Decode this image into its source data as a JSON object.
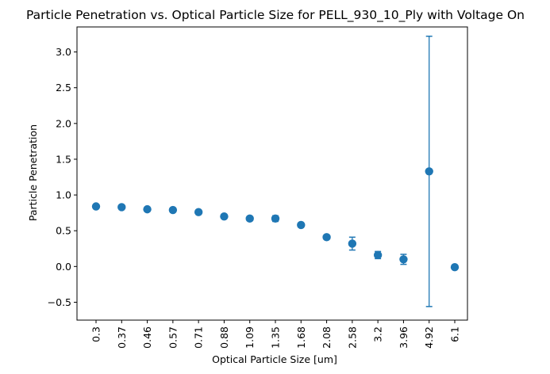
{
  "chart_data": {
    "type": "scatter",
    "title": "Particle Penetration vs. Optical Particle Size for PELL_930_10_Ply with Voltage On",
    "xlabel": "Optical Particle Size [um]",
    "ylabel": "Particle Penetration",
    "categories": [
      "0.3",
      "0.37",
      "0.46",
      "0.57",
      "0.71",
      "0.88",
      "1.09",
      "1.35",
      "1.68",
      "2.08",
      "2.58",
      "3.2",
      "3.96",
      "4.92",
      "6.1"
    ],
    "series": [
      {
        "values": [
          0.84,
          0.83,
          0.8,
          0.79,
          0.76,
          0.7,
          0.67,
          0.67,
          0.58,
          0.41,
          0.32,
          0.16,
          0.1,
          1.33,
          -0.01
        ],
        "error": [
          0.02,
          0.02,
          0.02,
          0.02,
          0.02,
          0.02,
          0.02,
          0.04,
          0.02,
          0.02,
          0.09,
          0.05,
          0.07,
          1.89,
          0.02
        ]
      }
    ],
    "ylim": [
      -0.75,
      3.35
    ],
    "yticks": [
      -0.5,
      0.0,
      0.5,
      1.0,
      1.5,
      2.0,
      2.5,
      3.0
    ],
    "ytick_labels": [
      "−0.5",
      "0.0",
      "0.5",
      "1.0",
      "1.5",
      "2.0",
      "2.5",
      "3.0"
    ],
    "grid": false,
    "colors": {
      "marker": "#1f77b4",
      "axis": "#000000",
      "background": "#ffffff"
    }
  }
}
